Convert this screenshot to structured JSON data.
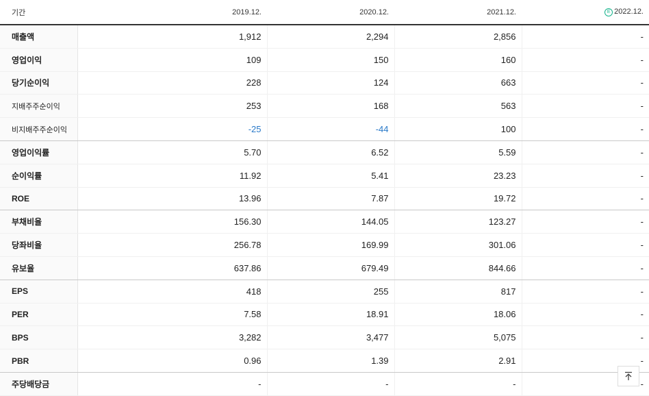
{
  "header": {
    "label": "기간",
    "periods": [
      "2019.12.",
      "2020.12.",
      "2021.12.",
      "2022.12."
    ],
    "estimate_icon": "Ⓔ",
    "estimate_color": "#14b38b"
  },
  "rows": [
    {
      "label": "매출액",
      "values": [
        "1,912",
        "2,294",
        "2,856",
        "-"
      ]
    },
    {
      "label": "영업이익",
      "values": [
        "109",
        "150",
        "160",
        "-"
      ]
    },
    {
      "label": "당기순이익",
      "values": [
        "228",
        "124",
        "663",
        "-"
      ]
    },
    {
      "label": "지배주주순이익",
      "values": [
        "253",
        "168",
        "563",
        "-"
      ]
    },
    {
      "label": "비지배주주순이익",
      "values": [
        "-25",
        "-44",
        "100",
        "-"
      ]
    },
    {
      "label": "영업이익률",
      "values": [
        "5.70",
        "6.52",
        "5.59",
        "-"
      ]
    },
    {
      "label": "순이익률",
      "values": [
        "11.92",
        "5.41",
        "23.23",
        "-"
      ]
    },
    {
      "label": "ROE",
      "values": [
        "13.96",
        "7.87",
        "19.72",
        "-"
      ]
    },
    {
      "label": "부채비율",
      "values": [
        "156.30",
        "144.05",
        "123.27",
        "-"
      ]
    },
    {
      "label": "당좌비율",
      "values": [
        "256.78",
        "169.99",
        "301.06",
        "-"
      ]
    },
    {
      "label": "유보율",
      "values": [
        "637.86",
        "679.49",
        "844.66",
        "-"
      ]
    },
    {
      "label": "EPS",
      "values": [
        "418",
        "255",
        "817",
        "-"
      ]
    },
    {
      "label": "PER",
      "values": [
        "7.58",
        "18.91",
        "18.06",
        "-"
      ]
    },
    {
      "label": "BPS",
      "values": [
        "3,282",
        "3,477",
        "5,075",
        "-"
      ]
    },
    {
      "label": "PBR",
      "values": [
        "0.96",
        "1.39",
        "2.91",
        "-"
      ]
    },
    {
      "label": "주당배당금",
      "values": [
        "-",
        "-",
        "-",
        "-"
      ]
    }
  ],
  "scroll_top_icon": "arrow-up-to-top-icon"
}
